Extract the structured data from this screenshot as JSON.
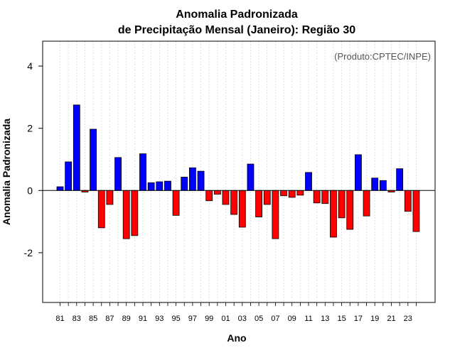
{
  "chart_data": {
    "type": "bar",
    "title": "Anomalia Padronizada",
    "subtitle": "de Precipitação Mensal (Janeiro): Região 30",
    "xlabel": "Ano",
    "ylabel": "Anomalia Padronizada",
    "annotation": "(Produto:CPTEC/INPE)",
    "ylim": [
      -3.6,
      4.8
    ],
    "yticks": [
      -2,
      0,
      2,
      4
    ],
    "categories": [
      "81",
      "82",
      "83",
      "84",
      "85",
      "86",
      "87",
      "88",
      "89",
      "90",
      "91",
      "92",
      "93",
      "94",
      "95",
      "96",
      "97",
      "98",
      "99",
      "00",
      "01",
      "02",
      "03",
      "04",
      "05",
      "06",
      "07",
      "08",
      "09",
      "10",
      "11",
      "12",
      "13",
      "14",
      "15",
      "16",
      "17",
      "18",
      "19",
      "20",
      "21",
      "22",
      "23",
      "24"
    ],
    "tick_labels": [
      "81",
      "83",
      "85",
      "87",
      "89",
      "91",
      "93",
      "95",
      "97",
      "99",
      "01",
      "03",
      "05",
      "07",
      "09",
      "11",
      "13",
      "15",
      "17",
      "19",
      "21",
      "23"
    ],
    "values": [
      0.12,
      0.92,
      2.75,
      -0.05,
      1.97,
      -1.2,
      -0.45,
      1.06,
      -1.55,
      -1.45,
      1.18,
      0.25,
      0.28,
      0.3,
      -0.8,
      0.43,
      0.73,
      0.62,
      -0.33,
      -0.12,
      -0.45,
      -0.77,
      -1.18,
      0.85,
      -0.85,
      -0.45,
      -1.55,
      -0.17,
      -0.22,
      -0.15,
      0.58,
      -0.4,
      -0.42,
      -1.5,
      -0.88,
      -1.25,
      1.15,
      -0.82,
      0.4,
      0.32,
      -0.05,
      0.7,
      -0.67,
      -1.32
    ],
    "positive_color": "#0000ff",
    "negative_color": "#ff0000",
    "grid": "vertical dotted",
    "legend": "none"
  }
}
